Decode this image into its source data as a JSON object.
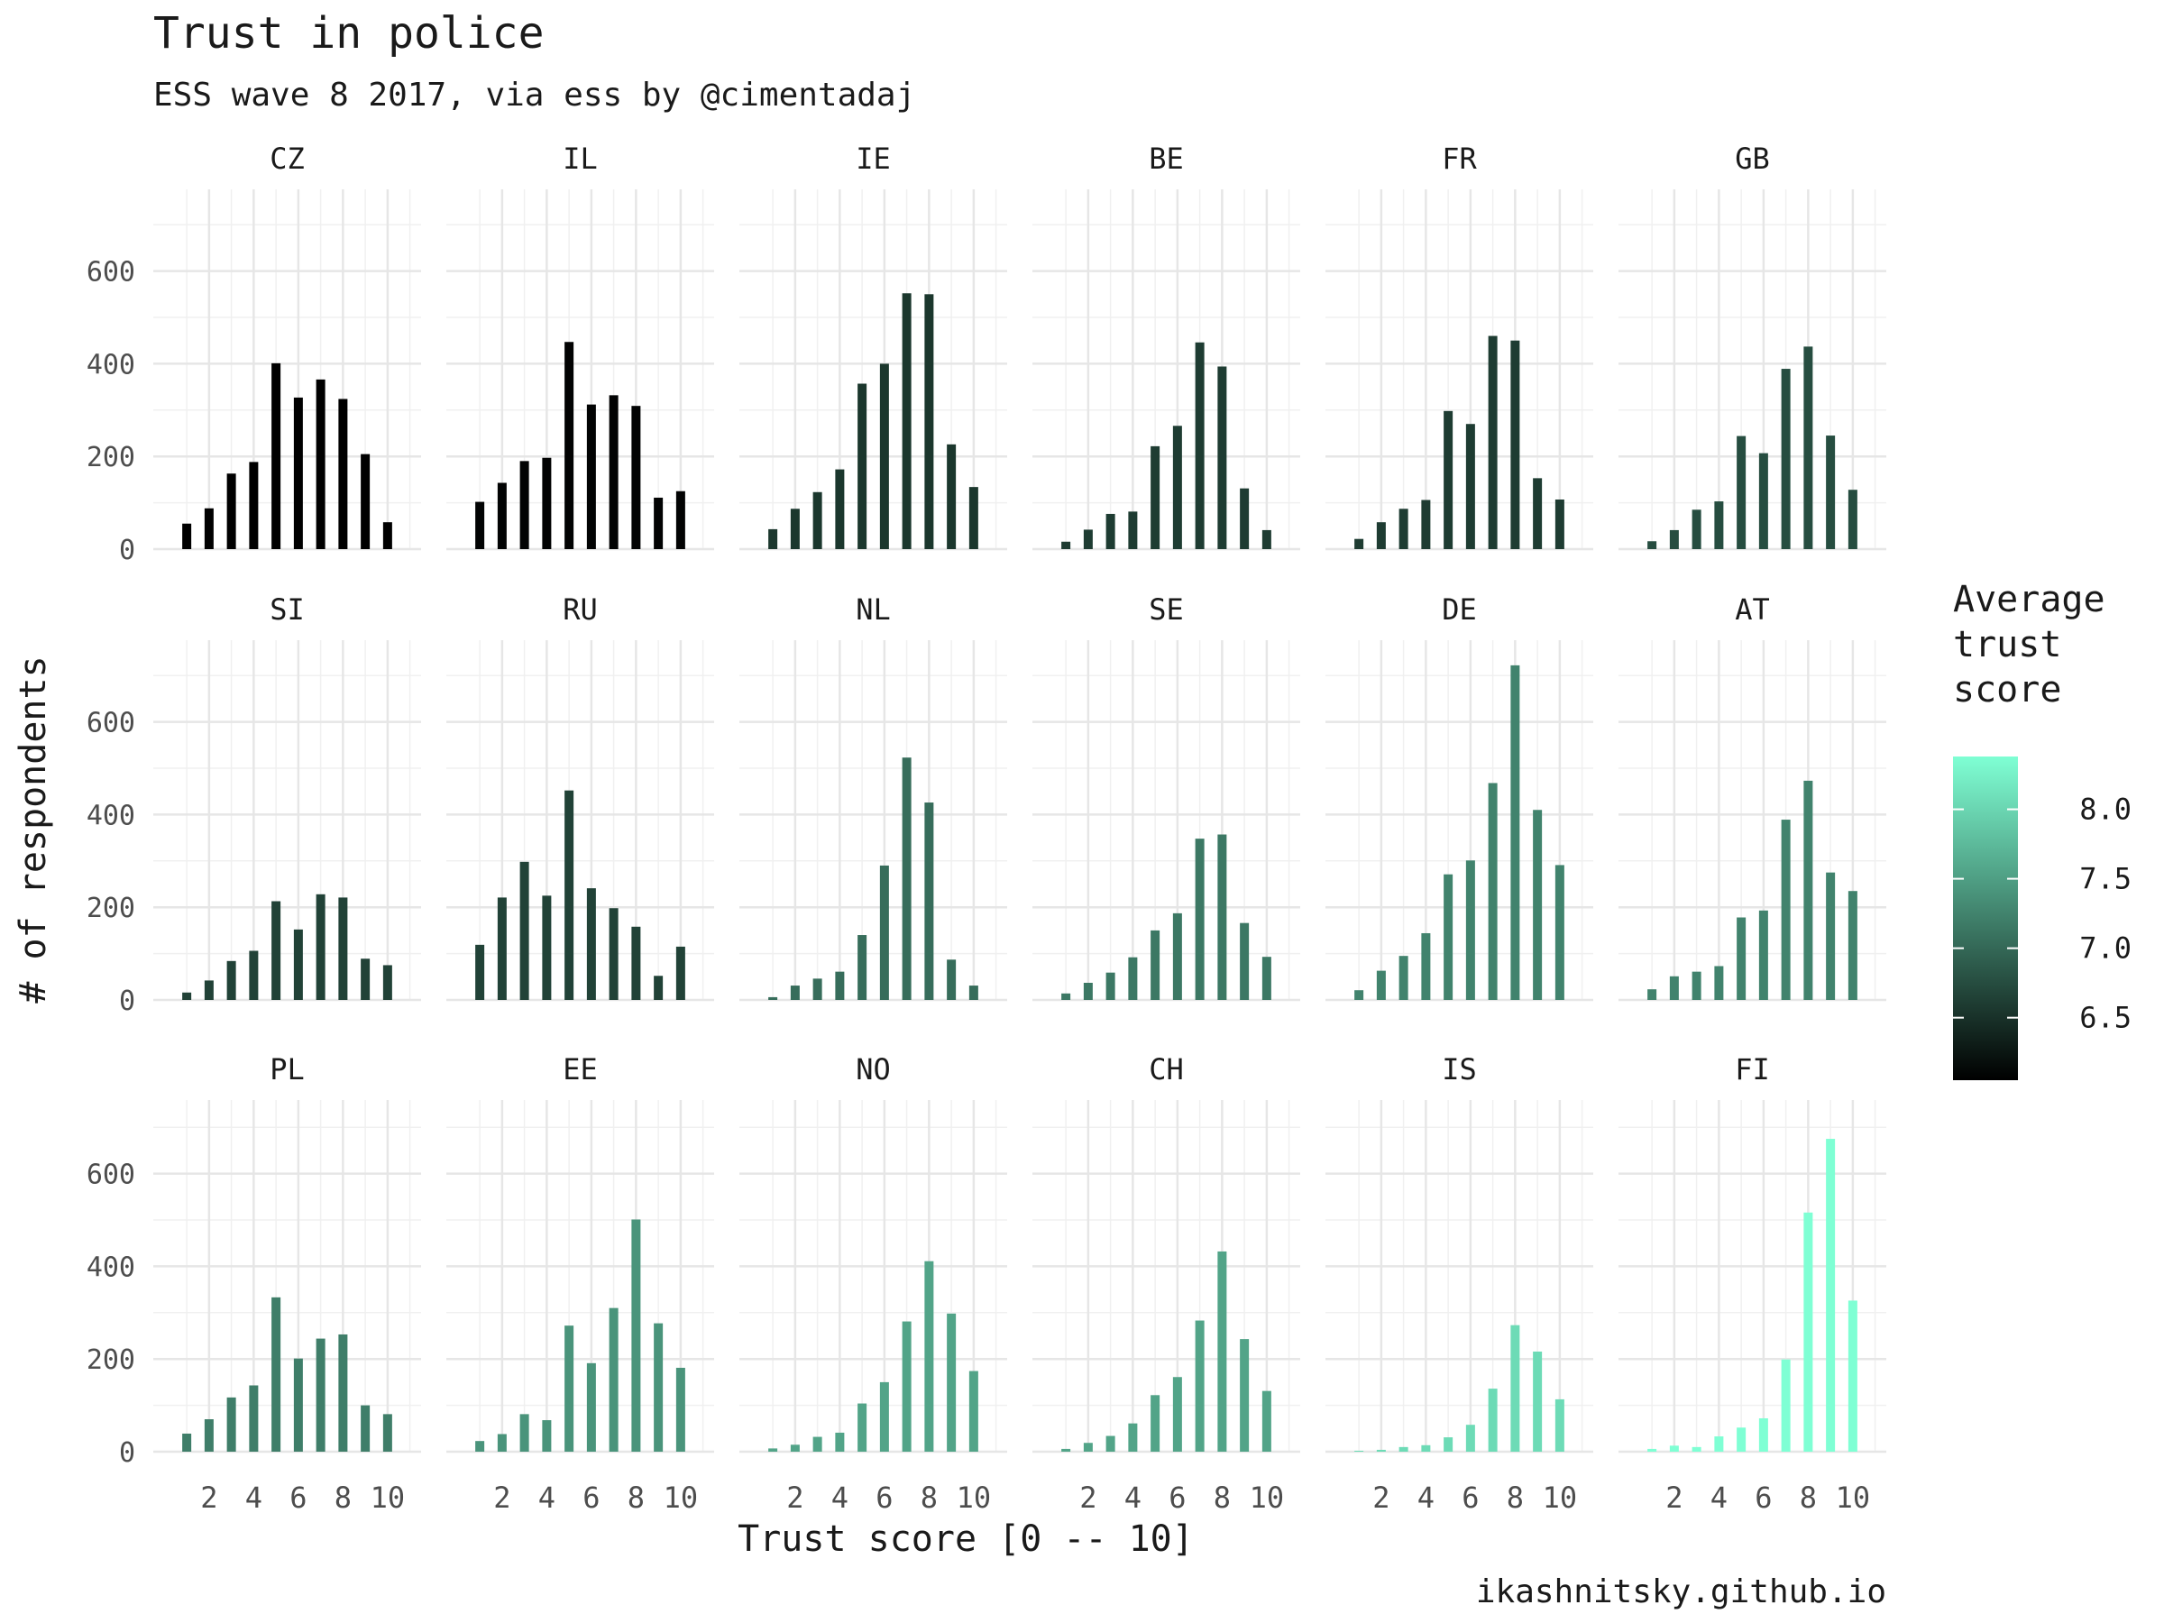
{
  "chart_data": {
    "type": "bar",
    "title": "Trust in police",
    "subtitle": "ESS wave 8 2017, via ess by @cimentadaj",
    "xlabel": "Trust score [0 -- 10]",
    "ylabel": "# of respondents",
    "caption": "ikashnitsky.github.io",
    "x": [
      0,
      1,
      2,
      3,
      4,
      5,
      6,
      7,
      8,
      9,
      10
    ],
    "x_ticks": [
      2,
      4,
      6,
      8,
      10
    ],
    "x_tick_labels": [
      "2",
      "4",
      "6",
      "8",
      "10"
    ],
    "xlim": [
      -0.5,
      11.5
    ],
    "y_ticks": [
      0,
      200,
      400,
      600
    ],
    "y_tick_labels": [
      "0",
      "200",
      "400",
      "600"
    ],
    "ylim": [
      0,
      760
    ],
    "grid": true,
    "layout": "facets, 3 rows x 6 columns",
    "legend": {
      "title": [
        "Average",
        "trust",
        "score"
      ],
      "placement": "right",
      "ticks": [
        6.5,
        7.0,
        7.5,
        8.0
      ],
      "tick_labels": [
        "6.5",
        "7.0",
        "7.5",
        "8.0"
      ],
      "range": [
        6.05,
        8.38
      ],
      "color_low": "#000000",
      "color_high": "#7fffd4"
    },
    "panels": [
      {
        "name": "CZ",
        "avg": 6.05,
        "values": [
          55,
          88,
          163,
          188,
          401,
          327,
          366,
          324,
          205,
          58,
          0
        ]
      },
      {
        "name": "IL",
        "avg": 6.08,
        "values": [
          102,
          143,
          190,
          197,
          447,
          312,
          332,
          309,
          111,
          125,
          0
        ]
      },
      {
        "name": "IE",
        "avg": 6.55,
        "values": [
          43,
          87,
          123,
          172,
          357,
          400,
          552,
          550,
          226,
          134,
          0
        ]
      },
      {
        "name": "BE",
        "avg": 6.6,
        "values": [
          16,
          42,
          76,
          81,
          222,
          266,
          446,
          394,
          131,
          41,
          0
        ]
      },
      {
        "name": "FR",
        "avg": 6.6,
        "values": [
          22,
          58,
          87,
          106,
          298,
          270,
          460,
          450,
          153,
          107,
          0
        ]
      },
      {
        "name": "GB",
        "avg": 6.75,
        "values": [
          17,
          41,
          85,
          103,
          244,
          207,
          389,
          437,
          245,
          128,
          0
        ]
      },
      {
        "name": "SI",
        "avg": 6.65,
        "values": [
          16,
          42,
          84,
          106,
          213,
          152,
          228,
          221,
          89,
          75,
          0
        ]
      },
      {
        "name": "RU",
        "avg": 6.65,
        "values": [
          119,
          221,
          298,
          225,
          452,
          241,
          198,
          158,
          52,
          115,
          0
        ]
      },
      {
        "name": "NL",
        "avg": 7.05,
        "values": [
          6,
          31,
          46,
          61,
          140,
          290,
          523,
          426,
          87,
          31,
          0
        ]
      },
      {
        "name": "SE",
        "avg": 7.15,
        "values": [
          14,
          37,
          59,
          92,
          150,
          187,
          348,
          357,
          166,
          93,
          0
        ]
      },
      {
        "name": "DE",
        "avg": 7.25,
        "values": [
          21,
          63,
          95,
          144,
          271,
          301,
          468,
          722,
          410,
          291,
          0
        ]
      },
      {
        "name": "AT",
        "avg": 7.25,
        "values": [
          23,
          51,
          61,
          73,
          178,
          193,
          389,
          473,
          275,
          235,
          0
        ]
      },
      {
        "name": "PL",
        "avg": 7.2,
        "values": [
          39,
          70,
          117,
          143,
          333,
          201,
          244,
          253,
          100,
          81,
          0
        ]
      },
      {
        "name": "EE",
        "avg": 7.4,
        "values": [
          23,
          38,
          81,
          68,
          272,
          191,
          310,
          501,
          277,
          181,
          0
        ]
      },
      {
        "name": "NO",
        "avg": 7.55,
        "values": [
          7,
          15,
          32,
          41,
          104,
          150,
          281,
          411,
          298,
          174,
          0
        ]
      },
      {
        "name": "CH",
        "avg": 7.55,
        "values": [
          6,
          19,
          34,
          61,
          122,
          161,
          283,
          432,
          243,
          131,
          0
        ]
      },
      {
        "name": "IS",
        "avg": 8.05,
        "values": [
          2,
          4,
          10,
          14,
          31,
          58,
          136,
          273,
          216,
          113,
          0
        ]
      },
      {
        "name": "FI",
        "avg": 8.38,
        "values": [
          6,
          13,
          10,
          33,
          52,
          72,
          199,
          516,
          675,
          326,
          0
        ]
      }
    ]
  }
}
